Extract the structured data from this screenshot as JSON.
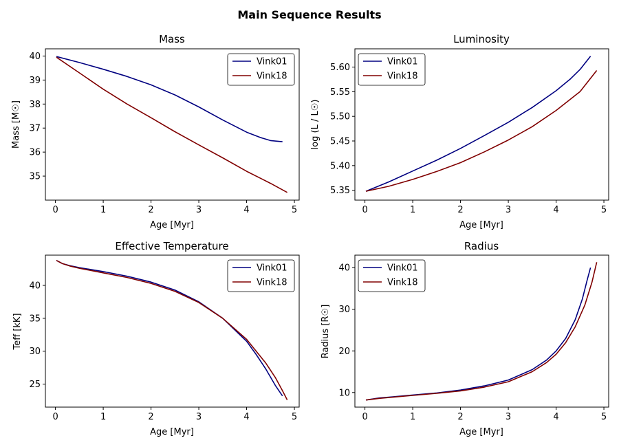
{
  "figure": {
    "title": "Main Sequence Results"
  },
  "colors": {
    "Vink01": "#000080",
    "Vink18": "#800000"
  },
  "chart_data": [
    {
      "id": "mass",
      "type": "line",
      "title": "Mass",
      "xlabel": "Age [Myr]",
      "ylabel": "Mass [M☉]",
      "xlim": [
        -0.21,
        5.1
      ],
      "ylim": [
        34.0,
        40.3
      ],
      "xticks": [
        0,
        1,
        2,
        3,
        4,
        5
      ],
      "yticks": [
        35,
        36,
        37,
        38,
        39,
        40
      ],
      "legend": "top-right",
      "series": [
        {
          "name": "Vink01",
          "color": "#000080",
          "x": [
            0.02,
            0.5,
            1.0,
            1.5,
            2.0,
            2.5,
            3.0,
            3.5,
            4.0,
            4.3,
            4.5,
            4.75
          ],
          "y": [
            39.98,
            39.73,
            39.45,
            39.15,
            38.8,
            38.38,
            37.88,
            37.34,
            36.83,
            36.6,
            36.48,
            36.43
          ]
        },
        {
          "name": "Vink18",
          "color": "#800000",
          "x": [
            0.02,
            0.5,
            1.0,
            1.5,
            2.0,
            2.5,
            3.0,
            3.5,
            4.0,
            4.5,
            4.85
          ],
          "y": [
            39.95,
            39.3,
            38.62,
            38.0,
            37.43,
            36.85,
            36.3,
            35.76,
            35.2,
            34.7,
            34.32
          ]
        }
      ]
    },
    {
      "id": "luminosity",
      "type": "line",
      "title": "Luminosity",
      "xlabel": "Age [Myr]",
      "ylabel": "log (L / L☉)",
      "xlim": [
        -0.21,
        5.1
      ],
      "ylim": [
        5.33,
        5.637
      ],
      "xticks": [
        0,
        1,
        2,
        3,
        4,
        5
      ],
      "yticks": [
        5.35,
        5.4,
        5.45,
        5.5,
        5.55,
        5.6
      ],
      "ytick_labels": [
        "5.35",
        "5.40",
        "5.45",
        "5.50",
        "5.55",
        "5.60"
      ],
      "legend": "top-left",
      "series": [
        {
          "name": "Vink01",
          "color": "#000080",
          "x": [
            0.02,
            0.5,
            1.0,
            1.5,
            2.0,
            2.5,
            3.0,
            3.5,
            4.0,
            4.3,
            4.5,
            4.72
          ],
          "y": [
            5.348,
            5.367,
            5.389,
            5.411,
            5.435,
            5.461,
            5.488,
            5.518,
            5.552,
            5.576,
            5.595,
            5.622
          ]
        },
        {
          "name": "Vink18",
          "color": "#800000",
          "x": [
            0.02,
            0.5,
            1.0,
            1.5,
            2.0,
            2.5,
            3.0,
            3.5,
            4.0,
            4.5,
            4.85
          ],
          "y": [
            5.348,
            5.358,
            5.372,
            5.388,
            5.406,
            5.428,
            5.452,
            5.479,
            5.512,
            5.55,
            5.593
          ]
        }
      ]
    },
    {
      "id": "teff",
      "type": "line",
      "title": "Effective Temperature",
      "xlabel": "Age [Myr]",
      "ylabel": "Teff [kK]",
      "xlim": [
        -0.21,
        5.1
      ],
      "ylim": [
        21.5,
        44.6
      ],
      "xticks": [
        0,
        1,
        2,
        3,
        4,
        5
      ],
      "yticks": [
        25,
        30,
        35,
        40
      ],
      "legend": "top-right",
      "series": [
        {
          "name": "Vink01",
          "color": "#000080",
          "x": [
            0.02,
            0.15,
            0.3,
            0.5,
            1.0,
            1.5,
            2.0,
            2.5,
            3.0,
            3.5,
            4.0,
            4.2,
            4.4,
            4.6,
            4.75
          ],
          "y": [
            43.8,
            43.3,
            43.0,
            42.7,
            42.1,
            41.4,
            40.5,
            39.3,
            37.5,
            35.0,
            31.5,
            29.5,
            27.3,
            24.8,
            23.2
          ]
        },
        {
          "name": "Vink18",
          "color": "#800000",
          "x": [
            0.02,
            0.15,
            0.3,
            0.5,
            1.0,
            1.5,
            2.0,
            2.5,
            3.0,
            3.5,
            4.0,
            4.2,
            4.4,
            4.6,
            4.75,
            4.85
          ],
          "y": [
            43.8,
            43.3,
            42.95,
            42.6,
            41.9,
            41.2,
            40.3,
            39.1,
            37.4,
            35.0,
            31.8,
            30.0,
            28.2,
            26.0,
            24.0,
            22.6
          ]
        }
      ]
    },
    {
      "id": "radius",
      "type": "line",
      "title": "Radius",
      "xlabel": "Age [Myr]",
      "ylabel": "Radius [R☉]",
      "xlim": [
        -0.21,
        5.1
      ],
      "ylim": [
        6.5,
        43.0
      ],
      "xticks": [
        0,
        1,
        2,
        3,
        4,
        5
      ],
      "yticks": [
        10,
        20,
        30,
        40
      ],
      "legend": "top-left",
      "series": [
        {
          "name": "Vink01",
          "color": "#000080",
          "x": [
            0.02,
            0.3,
            0.5,
            1.0,
            1.5,
            2.0,
            2.5,
            3.0,
            3.5,
            3.8,
            4.0,
            4.2,
            4.4,
            4.55,
            4.65,
            4.72
          ],
          "y": [
            8.2,
            8.7,
            8.9,
            9.4,
            9.9,
            10.6,
            11.6,
            13.0,
            15.5,
            17.8,
            20.0,
            23.0,
            27.5,
            32.5,
            37.0,
            40.0
          ]
        },
        {
          "name": "Vink18",
          "color": "#800000",
          "x": [
            0.02,
            0.3,
            0.5,
            1.0,
            1.5,
            2.0,
            2.5,
            3.0,
            3.5,
            3.8,
            4.0,
            4.2,
            4.4,
            4.6,
            4.75,
            4.85
          ],
          "y": [
            8.2,
            8.6,
            8.8,
            9.3,
            9.8,
            10.4,
            11.3,
            12.6,
            15.0,
            17.2,
            19.2,
            22.0,
            25.8,
            31.0,
            36.5,
            41.3
          ]
        }
      ]
    }
  ]
}
